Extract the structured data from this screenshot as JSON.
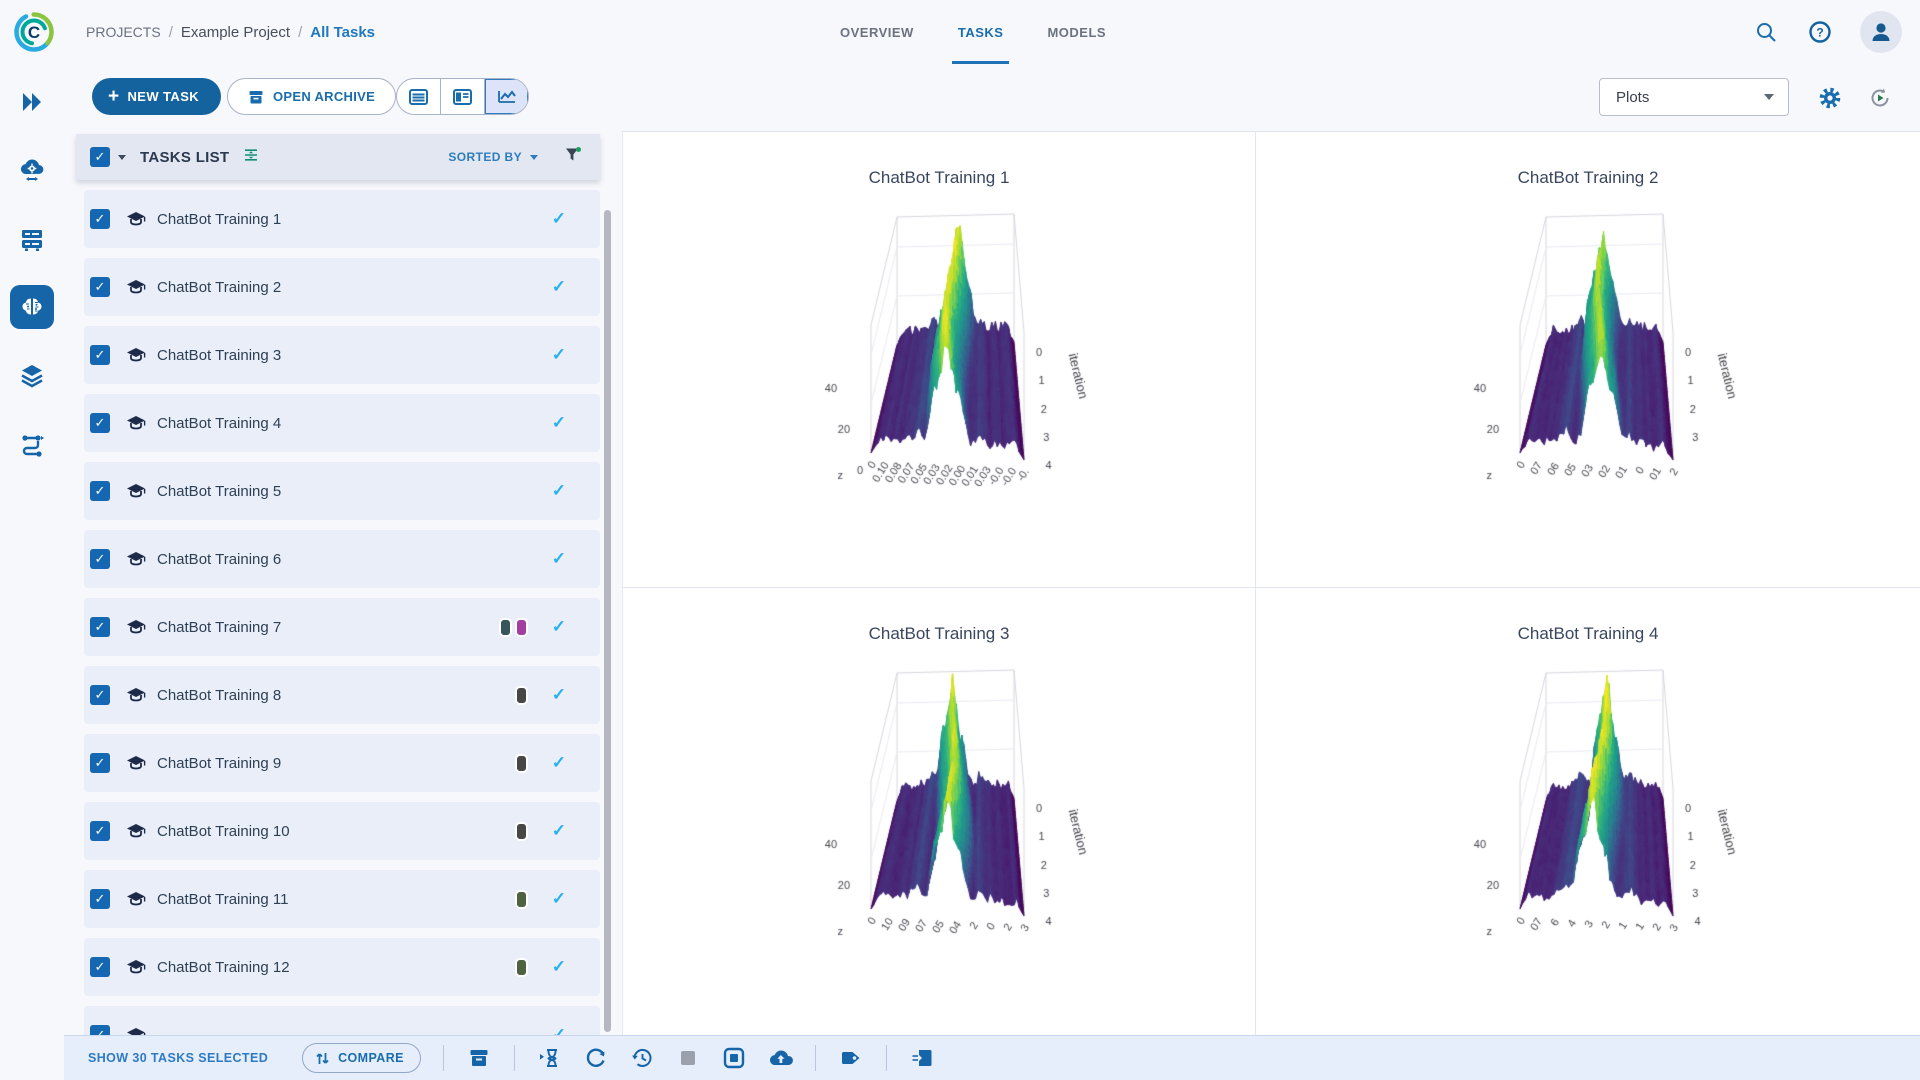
{
  "header": {
    "breadcrumb": [
      {
        "label": "PROJECTS"
      },
      {
        "label": "Example Project"
      },
      {
        "label": "All Tasks",
        "active": true
      }
    ],
    "tabs": [
      {
        "label": "OVERVIEW",
        "active": false
      },
      {
        "label": "TASKS",
        "active": true
      },
      {
        "label": "MODELS",
        "active": false
      }
    ]
  },
  "toolbar": {
    "new_task_label": "NEW TASK",
    "open_archive_label": "OPEN ARCHIVE",
    "view_selector_value": "Plots"
  },
  "tasks_panel": {
    "title": "TASKS LIST",
    "sorted_by_label": "SORTED BY",
    "tasks": [
      {
        "name": "ChatBot Training 1",
        "tag_colors": [],
        "selected": true
      },
      {
        "name": "ChatBot Training 2",
        "tag_colors": [],
        "selected": true
      },
      {
        "name": "ChatBot Training 3",
        "tag_colors": [],
        "selected": true
      },
      {
        "name": "ChatBot Training 4",
        "tag_colors": [],
        "selected": true
      },
      {
        "name": "ChatBot Training 5",
        "tag_colors": [],
        "selected": true
      },
      {
        "name": "ChatBot Training 6",
        "tag_colors": [],
        "selected": true
      },
      {
        "name": "ChatBot Training 7",
        "tag_colors": [
          "#37565c",
          "#a23da2"
        ],
        "selected": true
      },
      {
        "name": "ChatBot Training 8",
        "tag_colors": [
          "#474747"
        ],
        "selected": true
      },
      {
        "name": "ChatBot Training 9",
        "tag_colors": [
          "#474747"
        ],
        "selected": true
      },
      {
        "name": "ChatBot Training 10",
        "tag_colors": [
          "#474747"
        ],
        "selected": true
      },
      {
        "name": "ChatBot Training 11",
        "tag_colors": [
          "#4e6140"
        ],
        "selected": true
      },
      {
        "name": "ChatBot Training 12",
        "tag_colors": [
          "#4e6140"
        ],
        "selected": true
      },
      {
        "name": "",
        "tag_colors": [],
        "selected": true,
        "partial": true
      }
    ]
  },
  "footer": {
    "selection_label": "SHOW 30 TASKS SELECTED",
    "compare_label": "COMPARE"
  },
  "colors": {
    "primary": "#15639e",
    "link_blue": "#2079c0",
    "check_blue": "#2bb1ea",
    "row_bg": "#e9eef9",
    "footer_bg": "#e6edfb",
    "page_bg": "#f7f8fc",
    "panel_bg": "#ffffff",
    "tab_active": "#1a6dad",
    "disabled_gray": "#9ba1ac"
  },
  "chart_data": [
    {
      "type": "surface",
      "title": "ChatBot Training 1",
      "z_axis_label": "z",
      "z_ticks": [
        "40",
        "20",
        "0"
      ],
      "x_ticks": [
        "0",
        "0.10",
        "0.08",
        "0.07",
        "0.05",
        "0.03",
        "0.02",
        "0.00",
        "0.01",
        "0.03",
        "-0.0",
        "-0.0",
        "-0."
      ],
      "y_axis_label": "iteration",
      "y_ticks": [
        "0",
        "1",
        "2",
        "3",
        "4"
      ],
      "z_range": [
        0,
        50
      ],
      "colormap": "viridis",
      "description": "3D histogram-over-iterations surface: central ridge peaking near z=45-50, low plateau z~6 on both sides",
      "seed": 1
    },
    {
      "type": "surface",
      "title": "ChatBot Training 2",
      "z_axis_label": "z",
      "z_ticks": [
        "40",
        "20"
      ],
      "x_ticks": [
        "0",
        "07",
        "06",
        "05",
        "03",
        "02",
        "01",
        "0",
        "01",
        "2"
      ],
      "y_axis_label": "iteration",
      "y_ticks": [
        "0",
        "1",
        "2",
        "3"
      ],
      "z_range": [
        0,
        50
      ],
      "colormap": "viridis",
      "description": "3D histogram-over-iterations surface: central ridge peaking near z=45-50, low plateau z~6 on both sides",
      "seed": 2
    },
    {
      "type": "surface",
      "title": "ChatBot Training 3",
      "z_axis_label": "z",
      "z_ticks": [
        "40",
        "20"
      ],
      "x_ticks": [
        "0",
        "10",
        "09",
        "07",
        "05",
        "04",
        "2",
        "0",
        "2",
        "3"
      ],
      "y_axis_label": "iteration",
      "y_ticks": [
        "0",
        "1",
        "2",
        "3",
        "4"
      ],
      "z_range": [
        0,
        50
      ],
      "colormap": "viridis",
      "description": "3D histogram-over-iterations surface: central ridge peaking near z=45-50, low plateau z~6 on both sides",
      "seed": 3
    },
    {
      "type": "surface",
      "title": "ChatBot Training 4",
      "z_axis_label": "z",
      "z_ticks": [
        "40",
        "20"
      ],
      "x_ticks": [
        "0",
        "07",
        "6",
        "4",
        "3",
        "2",
        "1",
        "1",
        "2",
        "3"
      ],
      "y_axis_label": "iteration",
      "y_ticks": [
        "0",
        "1",
        "2",
        "3",
        "4"
      ],
      "z_range": [
        0,
        50
      ],
      "colormap": "viridis",
      "description": "3D histogram-over-iterations surface: central ridge peaking near z=45-50, low plateau z~6 on both sides",
      "seed": 4
    }
  ]
}
